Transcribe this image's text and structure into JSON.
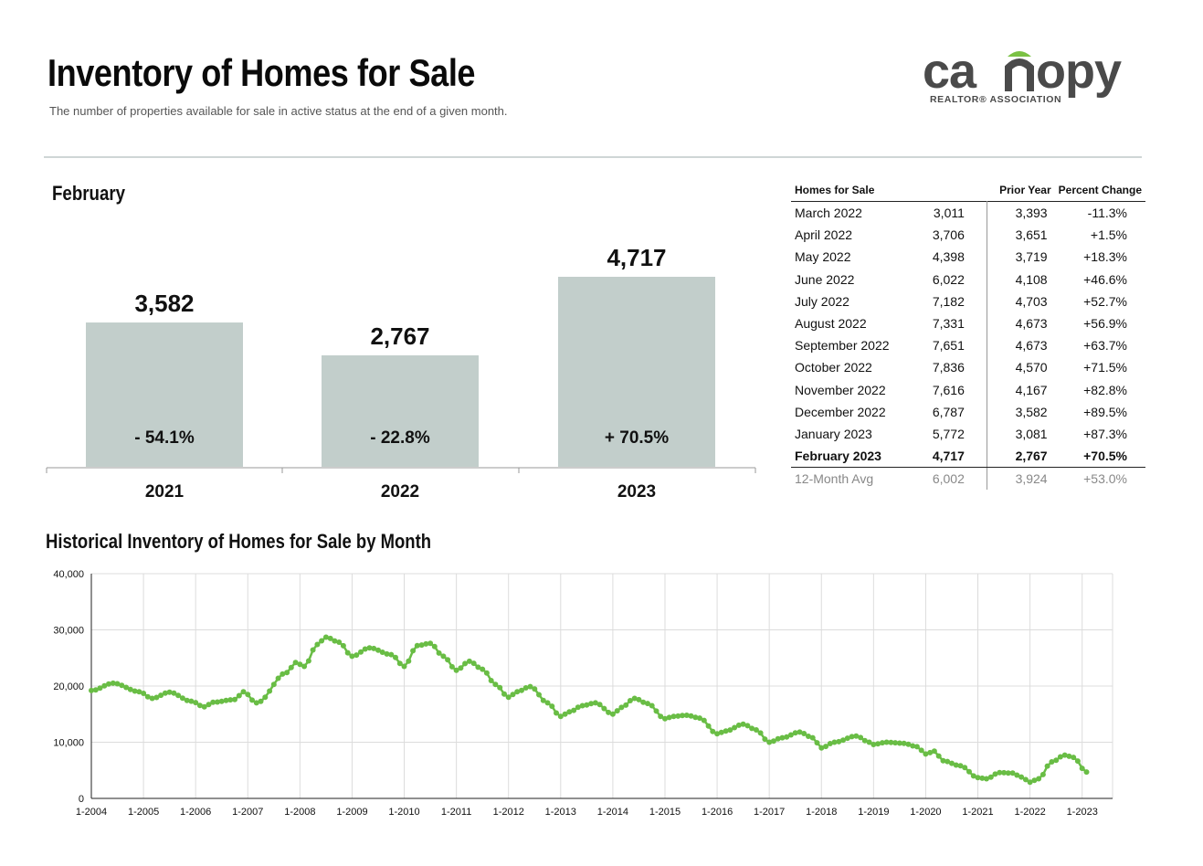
{
  "header": {
    "title": "Inventory of Homes for Sale",
    "subtitle": "The number of properties available for sale in active status at the end of a given month."
  },
  "logo": {
    "word_prefix": "ca",
    "word_suffix": "opy",
    "tagline": "REALTOR® ASSOCIATION",
    "color_text": "#4a4a4a",
    "color_accent": "#7ac143"
  },
  "colors": {
    "bar": "#c2cecb",
    "line": "#69bd45",
    "divider": "#cfd6d6"
  },
  "month_label": "February",
  "bar_chart": {
    "type": "bar",
    "categories": [
      "2021",
      "2022",
      "2023"
    ],
    "values": [
      3582,
      2767,
      4717
    ],
    "value_labels": [
      "3,582",
      "2,767",
      "4,717"
    ],
    "change_labels": [
      "- 54.1%",
      "- 22.8%",
      "+ 70.5%"
    ]
  },
  "table": {
    "headers": [
      "Homes for Sale",
      "",
      "Prior Year",
      "Percent Change"
    ],
    "rows": [
      [
        "March 2022",
        "3,011",
        "3,393",
        "-11.3%"
      ],
      [
        "April 2022",
        "3,706",
        "3,651",
        "+1.5%"
      ],
      [
        "May 2022",
        "4,398",
        "3,719",
        "+18.3%"
      ],
      [
        "June 2022",
        "6,022",
        "4,108",
        "+46.6%"
      ],
      [
        "July 2022",
        "7,182",
        "4,703",
        "+52.7%"
      ],
      [
        "August 2022",
        "7,331",
        "4,673",
        "+56.9%"
      ],
      [
        "September 2022",
        "7,651",
        "4,673",
        "+63.7%"
      ],
      [
        "October 2022",
        "7,836",
        "4,570",
        "+71.5%"
      ],
      [
        "November 2022",
        "7,616",
        "4,167",
        "+82.8%"
      ],
      [
        "December 2022",
        "6,787",
        "3,582",
        "+89.5%"
      ],
      [
        "January 2023",
        "5,772",
        "3,081",
        "+87.3%"
      ],
      [
        "February 2023",
        "4,717",
        "2,767",
        "+70.5%"
      ]
    ],
    "avg_row": [
      "12-Month Avg",
      "6,002",
      "3,924",
      "+53.0%"
    ]
  },
  "historical_title": "Historical Inventory of Homes for Sale by Month",
  "chart_data": {
    "type": "line",
    "ylim": [
      0,
      40000
    ],
    "y_ticks": [
      0,
      10000,
      20000,
      30000,
      40000
    ],
    "y_tick_labels": [
      "0",
      "10,000",
      "20,000",
      "30,000",
      "40,000"
    ],
    "x_tick_labels": [
      "1-2004",
      "1-2005",
      "1-2006",
      "1-2007",
      "1-2008",
      "1-2009",
      "1-2010",
      "1-2011",
      "1-2012",
      "1-2013",
      "1-2014",
      "1-2015",
      "1-2016",
      "1-2017",
      "1-2018",
      "1-2019",
      "1-2020",
      "1-2021",
      "1-2022",
      "1-2023"
    ],
    "grid": true,
    "series_start": "2004-01",
    "anchors": [
      [
        "2004-01",
        19200
      ],
      [
        "2004-06",
        20500
      ],
      [
        "2004-12",
        19000
      ],
      [
        "2005-03",
        17800
      ],
      [
        "2005-07",
        18900
      ],
      [
        "2005-12",
        17300
      ],
      [
        "2006-03",
        16300
      ],
      [
        "2006-05",
        17100
      ],
      [
        "2006-10",
        17600
      ],
      [
        "2006-12",
        19000
      ],
      [
        "2007-03",
        17000
      ],
      [
        "2007-10",
        22400
      ],
      [
        "2007-12",
        24200
      ],
      [
        "2008-02",
        23500
      ],
      [
        "2008-05",
        27400
      ],
      [
        "2008-07",
        28700
      ],
      [
        "2008-10",
        27800
      ],
      [
        "2009-01",
        25300
      ],
      [
        "2009-05",
        26800
      ],
      [
        "2009-10",
        25600
      ],
      [
        "2010-01",
        23500
      ],
      [
        "2010-04",
        27200
      ],
      [
        "2010-07",
        27600
      ],
      [
        "2010-10",
        25300
      ],
      [
        "2011-01",
        22800
      ],
      [
        "2011-04",
        24400
      ],
      [
        "2011-07",
        23000
      ],
      [
        "2011-10",
        20300
      ],
      [
        "2012-01",
        18000
      ],
      [
        "2012-03",
        19000
      ],
      [
        "2012-06",
        19900
      ],
      [
        "2012-10",
        17000
      ],
      [
        "2013-01",
        14600
      ],
      [
        "2013-03",
        15400
      ],
      [
        "2013-06",
        16500
      ],
      [
        "2013-09",
        17000
      ],
      [
        "2014-01",
        15000
      ],
      [
        "2014-03",
        16200
      ],
      [
        "2014-06",
        17800
      ],
      [
        "2014-09",
        16900
      ],
      [
        "2015-01",
        14200
      ],
      [
        "2015-03",
        14600
      ],
      [
        "2015-06",
        14800
      ],
      [
        "2015-09",
        14300
      ],
      [
        "2016-01",
        11500
      ],
      [
        "2016-03",
        12000
      ],
      [
        "2016-07",
        13200
      ],
      [
        "2016-10",
        12200
      ],
      [
        "2017-01",
        10000
      ],
      [
        "2017-04",
        10800
      ],
      [
        "2017-08",
        11800
      ],
      [
        "2017-11",
        10800
      ],
      [
        "2018-01",
        9000
      ],
      [
        "2018-04",
        10000
      ],
      [
        "2018-09",
        11100
      ],
      [
        "2018-12",
        10000
      ],
      [
        "2019-01",
        9600
      ],
      [
        "2019-04",
        10000
      ],
      [
        "2019-08",
        9800
      ],
      [
        "2019-11",
        9200
      ],
      [
        "2020-01",
        7900
      ],
      [
        "2020-03",
        8400
      ],
      [
        "2020-05",
        6700
      ],
      [
        "2020-09",
        5800
      ],
      [
        "2021-01",
        3700
      ],
      [
        "2021-03",
        3500
      ],
      [
        "2021-06",
        4600
      ],
      [
        "2021-09",
        4500
      ],
      [
        "2021-11",
        3800
      ],
      [
        "2022-01",
        2900
      ],
      [
        "2022-03",
        3500
      ],
      [
        "2022-06",
        6500
      ],
      [
        "2022-09",
        7700
      ],
      [
        "2022-11",
        7300
      ],
      [
        "2023-02",
        4700
      ]
    ]
  }
}
